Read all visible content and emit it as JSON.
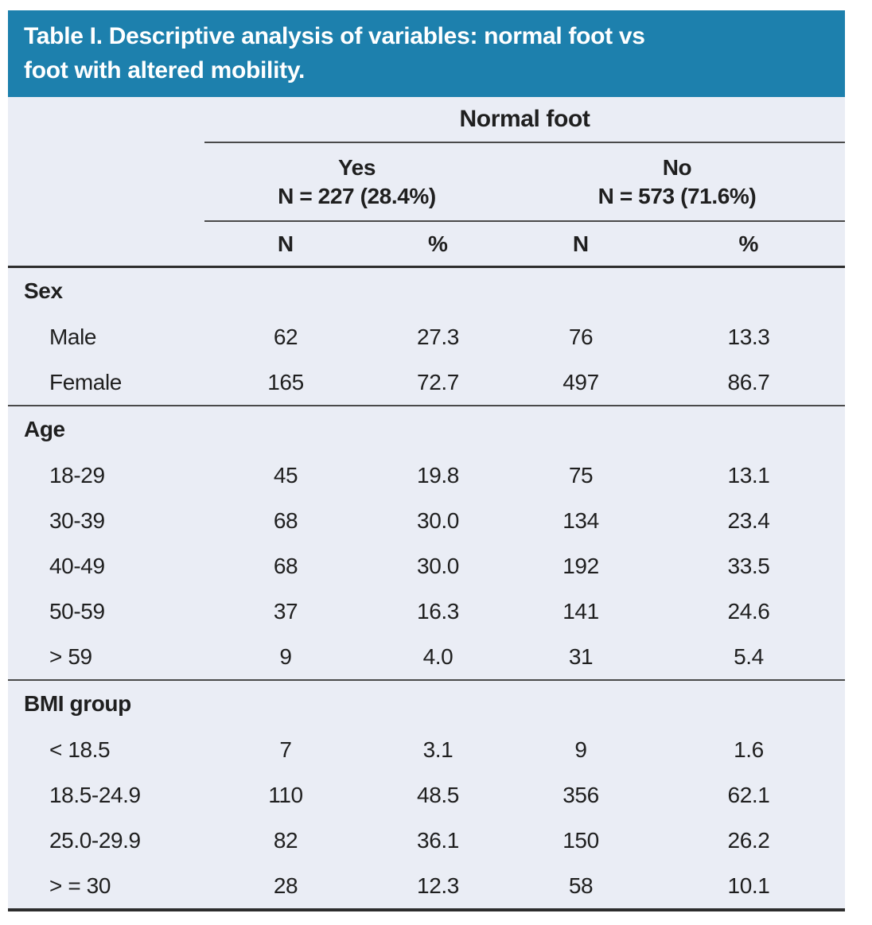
{
  "title": {
    "line1": "Table I. Descriptive analysis of variables: normal foot vs",
    "line2": "foot with altered mobility."
  },
  "colors": {
    "banner_bg": "#1d80ad",
    "banner_text": "#ffffff",
    "table_bg": "#eaedf5",
    "text": "#1f1f1f",
    "rule": "#4a4a4a",
    "rule_dark": "#2d2d2d"
  },
  "table": {
    "group_header": "Normal foot",
    "subgroups": [
      {
        "label": "Yes",
        "count": "N = 227 (28.4%)"
      },
      {
        "label": "No",
        "count": "N = 573 (71.6%)"
      }
    ],
    "col_headers": [
      "N",
      "%",
      "N",
      "%"
    ],
    "sections": [
      {
        "name": "Sex",
        "rows": [
          {
            "label": "Male",
            "values": [
              "62",
              "27.3",
              "76",
              "13.3"
            ]
          },
          {
            "label": "Female",
            "values": [
              "165",
              "72.7",
              "497",
              "86.7"
            ]
          }
        ]
      },
      {
        "name": "Age",
        "rows": [
          {
            "label": "18-29",
            "values": [
              "45",
              "19.8",
              "75",
              "13.1"
            ]
          },
          {
            "label": "30-39",
            "values": [
              "68",
              "30.0",
              "134",
              "23.4"
            ]
          },
          {
            "label": "40-49",
            "values": [
              "68",
              "30.0",
              "192",
              "33.5"
            ]
          },
          {
            "label": "50-59",
            "values": [
              "37",
              "16.3",
              "141",
              "24.6"
            ]
          },
          {
            "label": "> 59",
            "values": [
              "9",
              "4.0",
              "31",
              "5.4"
            ]
          }
        ]
      },
      {
        "name": "BMI group",
        "rows": [
          {
            "label": "< 18.5",
            "values": [
              "7",
              "3.1",
              "9",
              "1.6"
            ]
          },
          {
            "label": "18.5-24.9",
            "values": [
              "110",
              "48.5",
              "356",
              "62.1"
            ]
          },
          {
            "label": "25.0-29.9",
            "values": [
              "82",
              "36.1",
              "150",
              "26.2"
            ]
          },
          {
            "label": "> = 30",
            "values": [
              "28",
              "12.3",
              "58",
              "10.1"
            ]
          }
        ]
      }
    ]
  }
}
